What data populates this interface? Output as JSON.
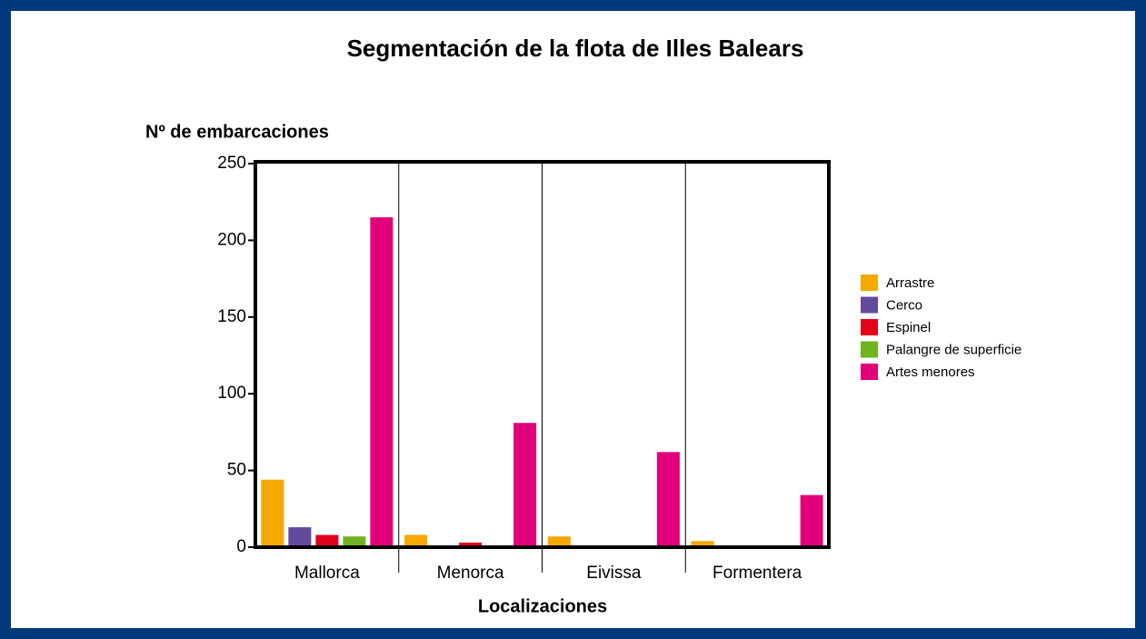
{
  "chart_data": {
    "type": "bar",
    "title": "Segmentación de la flota de Illes Balears",
    "y_label": "Nº de embarcaciones",
    "x_label": "Localizaciones",
    "categories": [
      "Mallorca",
      "Menorca",
      "Eivissa",
      "Formentera"
    ],
    "series": [
      {
        "name": "Arrastre",
        "color": "#f5a800",
        "values": [
          44,
          8,
          7,
          4
        ]
      },
      {
        "name": "Cerco",
        "color": "#634a9b",
        "values": [
          13,
          0,
          0,
          0
        ]
      },
      {
        "name": "Espinel",
        "color": "#e2001a",
        "values": [
          8,
          3,
          0,
          0
        ]
      },
      {
        "name": "Palangre de superficie",
        "color": "#6fb31f",
        "values": [
          7,
          0,
          0,
          0
        ]
      },
      {
        "name": "Artes menores",
        "color": "#e2007a",
        "values": [
          215,
          81,
          62,
          34
        ]
      }
    ],
    "ylim": [
      0,
      250
    ],
    "yticks": [
      0,
      50,
      100,
      150,
      200,
      250
    ],
    "legend": "right"
  }
}
